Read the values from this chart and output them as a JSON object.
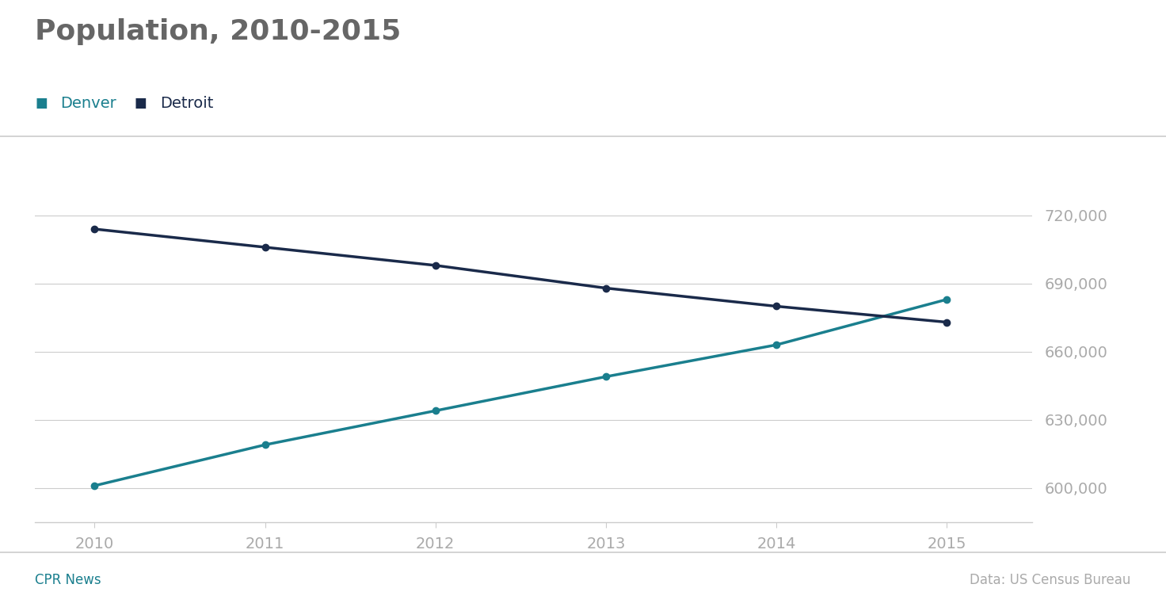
{
  "title": "Population, 2010-2015",
  "years": [
    2010,
    2011,
    2012,
    2013,
    2014,
    2015
  ],
  "denver": [
    601000,
    619000,
    634000,
    649000,
    663000,
    683000
  ],
  "detroit": [
    714000,
    706000,
    698000,
    688000,
    680000,
    673000
  ],
  "denver_color": "#1a7f8e",
  "detroit_color": "#1a2a4a",
  "background_color": "#ffffff",
  "grid_color": "#cccccc",
  "title_color": "#666666",
  "yticks": [
    600000,
    630000,
    660000,
    690000,
    720000
  ],
  "ylim": [
    585000,
    732000
  ],
  "footer_left": "CPR News",
  "footer_right": "Data: US Census Bureau",
  "footer_left_color": "#1a7f8e",
  "footer_right_color": "#aaaaaa",
  "tick_label_color": "#aaaaaa",
  "title_fontsize": 26,
  "legend_fontsize": 14,
  "tick_fontsize": 14
}
